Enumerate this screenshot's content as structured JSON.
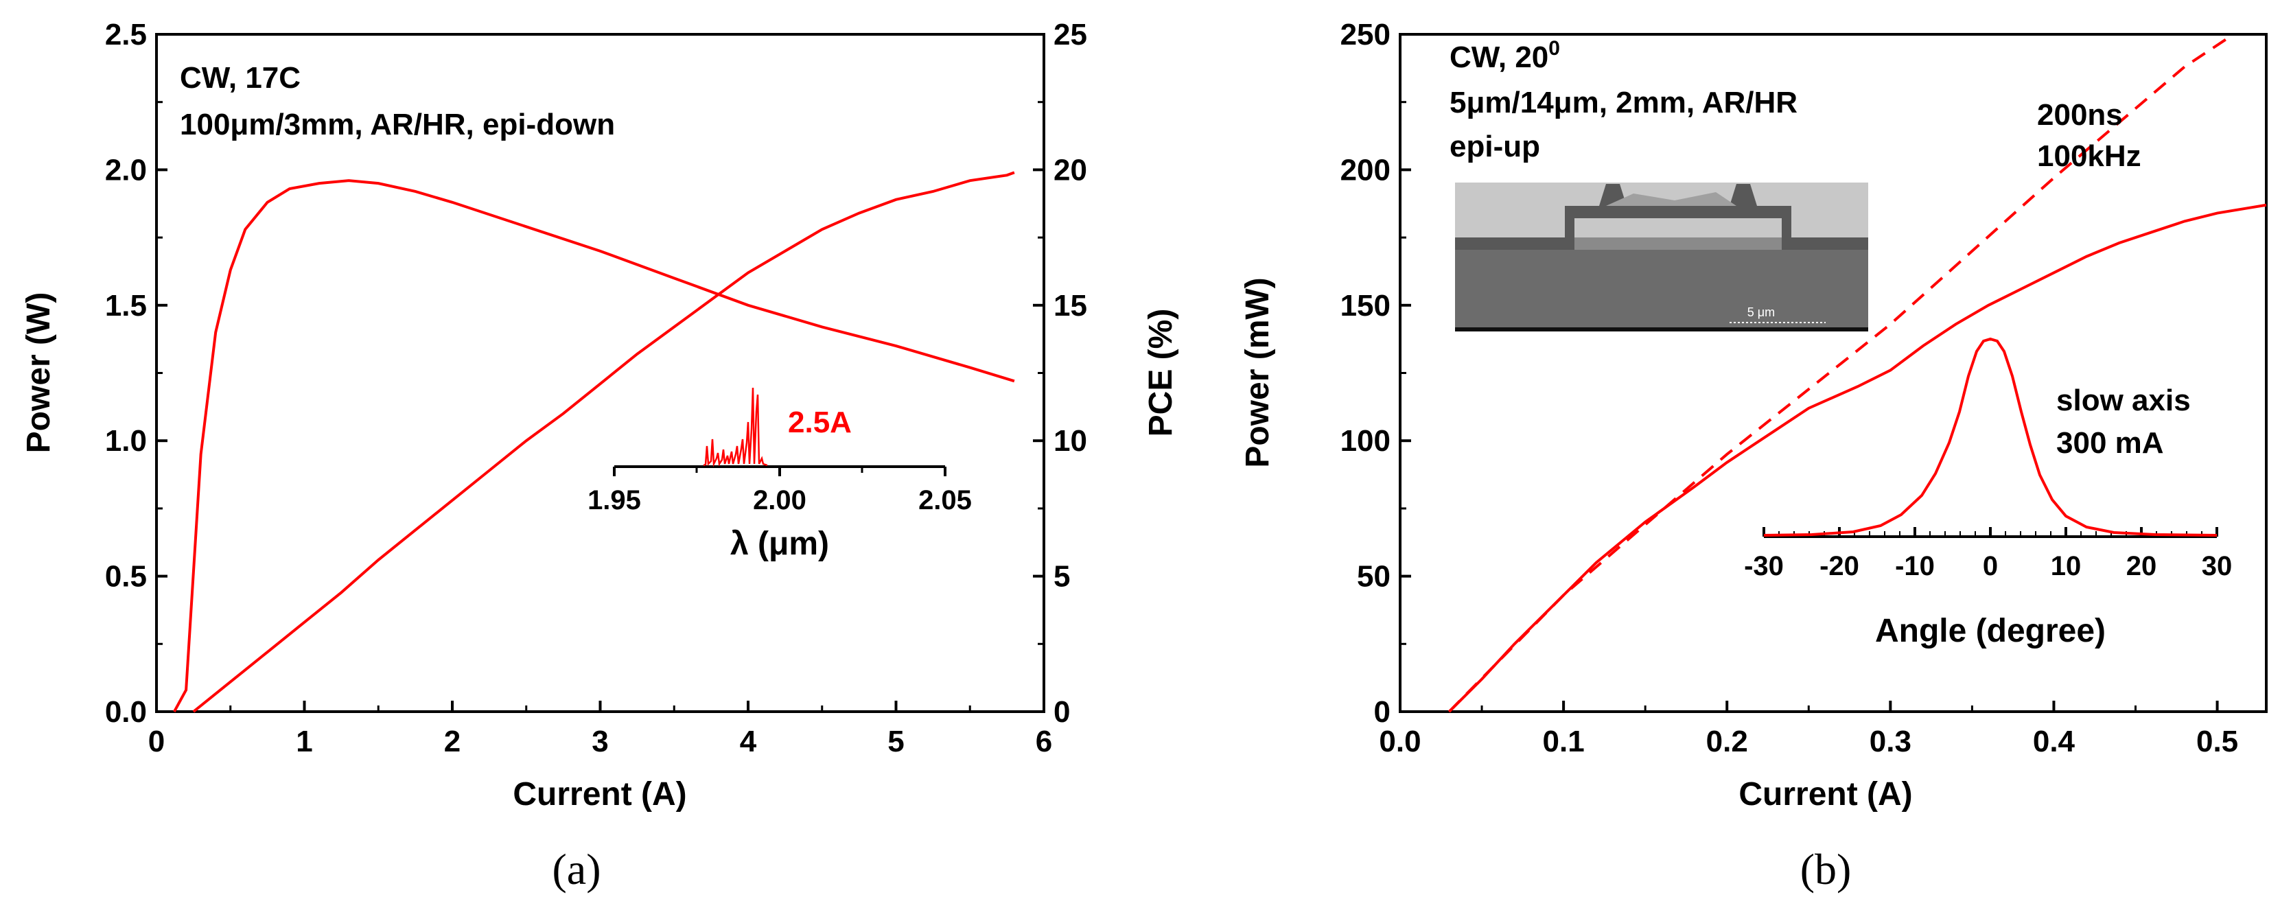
{
  "colors": {
    "series": "#ff0000",
    "axis": "#000000"
  },
  "panels": {
    "a": {
      "caption": "(a)",
      "annotation_lines": [
        "CW, 17C",
        "100μm/3mm, AR/HR, epi-down"
      ],
      "inset_label": "2.5A",
      "inset_xlabel": "λ (μm)",
      "inset_ticks": [
        "1.95",
        "2.00",
        "2.05"
      ]
    },
    "b": {
      "caption": "(b)",
      "annotation_line1": "CW, 20",
      "annotation_sup": "0",
      "annotation_lines": [
        "5μm/14μm, 2mm, AR/HR",
        "epi-up"
      ],
      "pulse_lines": [
        "200ns",
        "100kHz"
      ],
      "sem_scale_label": "5 μm",
      "inset_lines": [
        "slow axis",
        "300 mA"
      ],
      "inset_xlabel": "Angle (degree)",
      "inset_ticks": [
        "-30",
        "-20",
        "-10",
        "0",
        "10",
        "20",
        "30"
      ]
    }
  },
  "chart_data": [
    {
      "type": "line",
      "panel": "a",
      "xlabel": "Current (A)",
      "ylabel": "Power (W)",
      "y2label": "PCE (%)",
      "xlim": [
        0,
        6
      ],
      "ylim": [
        0,
        2.5
      ],
      "y2lim": [
        0,
        25
      ],
      "xticks": [
        "0",
        "1",
        "2",
        "3",
        "4",
        "5",
        "6"
      ],
      "yticks": [
        "0.0",
        "0.5",
        "1.0",
        "1.5",
        "2.0",
        "2.5"
      ],
      "y2ticks": [
        "0",
        "5",
        "10",
        "15",
        "20",
        "25"
      ],
      "series": [
        {
          "name": "Power",
          "axis": "left",
          "x": [
            0.25,
            0.5,
            0.75,
            1.0,
            1.25,
            1.5,
            1.75,
            2.0,
            2.25,
            2.5,
            2.75,
            3.0,
            3.25,
            3.5,
            3.75,
            4.0,
            4.25,
            4.5,
            4.75,
            5.0,
            5.25,
            5.5,
            5.75,
            5.8
          ],
          "y": [
            0.0,
            0.11,
            0.22,
            0.33,
            0.44,
            0.56,
            0.67,
            0.78,
            0.89,
            1.0,
            1.1,
            1.21,
            1.32,
            1.42,
            1.52,
            1.62,
            1.7,
            1.78,
            1.84,
            1.89,
            1.92,
            1.96,
            1.98,
            1.99
          ]
        },
        {
          "name": "PCE",
          "axis": "right",
          "x": [
            0.12,
            0.2,
            0.3,
            0.4,
            0.5,
            0.6,
            0.75,
            0.9,
            1.1,
            1.3,
            1.5,
            1.75,
            2.0,
            2.5,
            3.0,
            3.5,
            4.0,
            4.5,
            5.0,
            5.5,
            5.8
          ],
          "y": [
            0.0,
            0.8,
            9.5,
            14.0,
            16.3,
            17.8,
            18.8,
            19.3,
            19.5,
            19.6,
            19.5,
            19.2,
            18.8,
            17.9,
            17.0,
            16.0,
            15.0,
            14.2,
            13.5,
            12.7,
            12.2
          ]
        }
      ]
    },
    {
      "type": "line",
      "panel": "b",
      "xlabel": "Current (A)",
      "ylabel": "Power (mW)",
      "xlim": [
        0.0,
        0.53
      ],
      "ylim": [
        0,
        250
      ],
      "xticks": [
        "0.0",
        "0.1",
        "0.2",
        "0.3",
        "0.4",
        "0.5"
      ],
      "yticks": [
        "0",
        "50",
        "100",
        "150",
        "200",
        "250"
      ],
      "series": [
        {
          "name": "CW",
          "style": "solid",
          "x": [
            0.03,
            0.05,
            0.07,
            0.1,
            0.12,
            0.15,
            0.18,
            0.2,
            0.22,
            0.23,
            0.25,
            0.28,
            0.3,
            0.32,
            0.34,
            0.36,
            0.38,
            0.4,
            0.42,
            0.44,
            0.46,
            0.48,
            0.5,
            0.52,
            0.53
          ],
          "y": [
            0,
            12,
            25,
            43,
            55,
            70,
            83,
            92,
            100,
            104,
            112,
            120,
            126,
            135,
            143,
            150,
            156,
            162,
            168,
            173,
            177,
            181,
            184,
            186,
            187
          ]
        },
        {
          "name": "200ns 100kHz",
          "style": "dashed",
          "x": [
            0.03,
            0.1,
            0.2,
            0.3,
            0.4,
            0.48,
            0.51
          ],
          "y": [
            0,
            43,
            95,
            143,
            197,
            238,
            250
          ]
        }
      ]
    }
  ]
}
